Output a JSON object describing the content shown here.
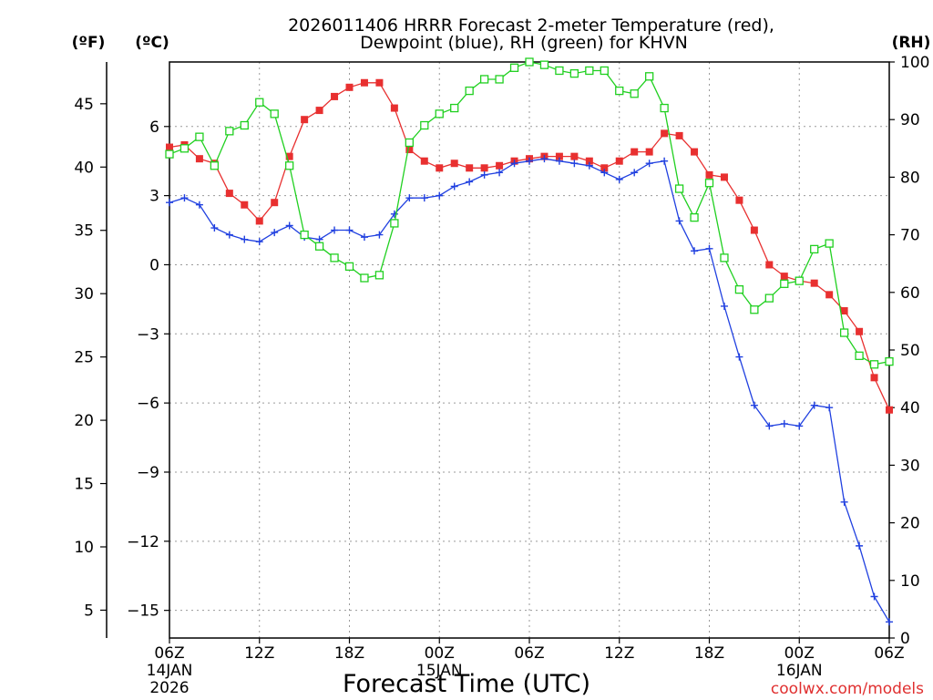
{
  "chart_data": {
    "type": "line",
    "title_line1": "2026011406 HRRR Forecast 2-meter Temperature (red),",
    "title_line2": "Dewpoint (blue), RH (green) for KHVN",
    "xlabel": "Forecast Time (UTC)",
    "credit": "coolwx.com/models",
    "left_axis_f": {
      "unit_label": "(ºF)",
      "ticks": [
        45,
        40,
        35,
        30,
        25,
        20,
        15,
        10,
        5
      ],
      "ylim": [
        2.8,
        48.3
      ]
    },
    "left_axis_c": {
      "unit_label": "(ºC)",
      "ticks": [
        6,
        3,
        0,
        -3,
        -6,
        -9,
        -12,
        -15
      ],
      "ylim": [
        -16.2,
        8.8
      ]
    },
    "right_axis_rh": {
      "unit_label": "(RH)",
      "ticks": [
        100,
        90,
        80,
        70,
        60,
        50,
        40,
        30,
        20,
        10,
        0
      ],
      "ylim": [
        0,
        100
      ]
    },
    "x_ticks": [
      {
        "hour": 0,
        "label": "06Z",
        "sub1": "14JAN",
        "sub2": "2026"
      },
      {
        "hour": 6,
        "label": "12Z",
        "sub1": "",
        "sub2": ""
      },
      {
        "hour": 12,
        "label": "18Z",
        "sub1": "",
        "sub2": ""
      },
      {
        "hour": 18,
        "label": "00Z",
        "sub1": "15JAN",
        "sub2": ""
      },
      {
        "hour": 24,
        "label": "06Z",
        "sub1": "",
        "sub2": ""
      },
      {
        "hour": 30,
        "label": "12Z",
        "sub1": "",
        "sub2": ""
      },
      {
        "hour": 36,
        "label": "18Z",
        "sub1": "",
        "sub2": ""
      },
      {
        "hour": 42,
        "label": "00Z",
        "sub1": "16JAN",
        "sub2": ""
      },
      {
        "hour": 48,
        "label": "06Z",
        "sub1": "",
        "sub2": ""
      }
    ],
    "xlim": [
      0,
      48
    ],
    "series": [
      {
        "name": "2-meter Temperature",
        "axis": "c",
        "color": "#e83030",
        "marker": "filled-square",
        "x": [
          0,
          1,
          2,
          3,
          4,
          5,
          6,
          7,
          8,
          9,
          10,
          11,
          12,
          13,
          14,
          15,
          16,
          17,
          18,
          19,
          20,
          21,
          22,
          23,
          24,
          25,
          26,
          27,
          28,
          29,
          30,
          31,
          32,
          33,
          34,
          35,
          36,
          37,
          38,
          39,
          40,
          41,
          42,
          43,
          44,
          45,
          46,
          47,
          48
        ],
        "values": [
          5.1,
          5.2,
          4.6,
          4.4,
          3.1,
          2.6,
          1.9,
          2.7,
          4.7,
          6.3,
          6.7,
          7.3,
          7.7,
          7.9,
          7.9,
          6.8,
          5.0,
          4.5,
          4.2,
          4.4,
          4.2,
          4.2,
          4.3,
          4.5,
          4.6,
          4.7,
          4.7,
          4.7,
          4.5,
          4.2,
          4.5,
          4.9,
          4.9,
          5.7,
          5.6,
          4.9,
          3.9,
          3.8,
          2.8,
          1.5,
          0.0,
          -0.5,
          -0.7,
          -0.8,
          -1.3,
          -2.0,
          -2.9,
          -4.9,
          -6.3
        ]
      },
      {
        "name": "Dewpoint",
        "axis": "c",
        "color": "#2040e0",
        "marker": "plus",
        "x": [
          0,
          1,
          2,
          3,
          4,
          5,
          6,
          7,
          8,
          9,
          10,
          11,
          12,
          13,
          14,
          15,
          16,
          17,
          18,
          19,
          20,
          21,
          22,
          23,
          24,
          25,
          26,
          27,
          28,
          29,
          30,
          31,
          32,
          33,
          34,
          35,
          36,
          37,
          38,
          39,
          40,
          41,
          42,
          43,
          44,
          45,
          46,
          47,
          48
        ],
        "values": [
          2.7,
          2.9,
          2.6,
          1.6,
          1.3,
          1.1,
          1.0,
          1.4,
          1.7,
          1.2,
          1.1,
          1.5,
          1.5,
          1.2,
          1.3,
          2.2,
          2.9,
          2.9,
          3.0,
          3.4,
          3.6,
          3.9,
          4.0,
          4.4,
          4.5,
          4.6,
          4.5,
          4.4,
          4.3,
          4.0,
          3.7,
          4.0,
          4.4,
          4.5,
          1.9,
          0.6,
          0.7,
          -1.8,
          -4.0,
          -6.1,
          -7.0,
          -6.9,
          -7.0,
          -6.1,
          -6.2,
          -10.3,
          -12.2,
          -14.4,
          -15.5
        ]
      },
      {
        "name": "RH",
        "axis": "rh",
        "color": "#20d020",
        "marker": "open-square",
        "x": [
          0,
          1,
          2,
          3,
          4,
          5,
          6,
          7,
          8,
          9,
          10,
          11,
          12,
          13,
          14,
          15,
          16,
          17,
          18,
          19,
          20,
          21,
          22,
          23,
          24,
          25,
          26,
          27,
          28,
          29,
          30,
          31,
          32,
          33,
          34,
          35,
          36,
          37,
          38,
          39,
          40,
          41,
          42,
          43,
          44,
          45,
          46,
          47,
          48
        ],
        "values": [
          84,
          85,
          87,
          82,
          88,
          89,
          93,
          91,
          82,
          70,
          68,
          66,
          64.5,
          62.5,
          63,
          72,
          86,
          89,
          91,
          92,
          95,
          97,
          97,
          99,
          100,
          99.5,
          98.5,
          98,
          98.5,
          98.5,
          95,
          94.5,
          97.5,
          92,
          78,
          73,
          79,
          66,
          60.5,
          57,
          59,
          61.5,
          62,
          67.5,
          68.5,
          53,
          49,
          47.5,
          48
        ]
      }
    ]
  }
}
